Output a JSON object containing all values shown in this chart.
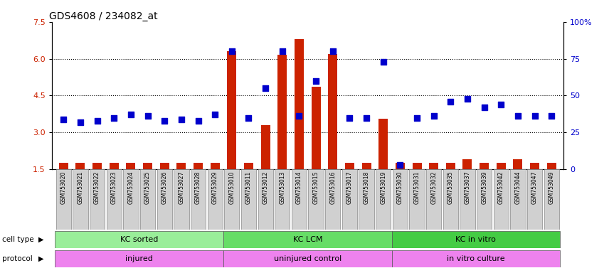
{
  "title": "GDS4608 / 234082_at",
  "samples": [
    "GSM753020",
    "GSM753021",
    "GSM753022",
    "GSM753023",
    "GSM753024",
    "GSM753025",
    "GSM753026",
    "GSM753027",
    "GSM753028",
    "GSM753029",
    "GSM753010",
    "GSM753011",
    "GSM753012",
    "GSM753013",
    "GSM753014",
    "GSM753015",
    "GSM753016",
    "GSM753017",
    "GSM753018",
    "GSM753019",
    "GSM753030",
    "GSM753031",
    "GSM753032",
    "GSM753035",
    "GSM753037",
    "GSM753039",
    "GSM753042",
    "GSM753044",
    "GSM753047",
    "GSM753049"
  ],
  "transformed_count": [
    1.75,
    1.75,
    1.75,
    1.75,
    1.75,
    1.75,
    1.75,
    1.75,
    1.75,
    1.75,
    6.3,
    1.75,
    3.3,
    6.15,
    6.8,
    4.85,
    6.2,
    1.75,
    1.75,
    3.55,
    1.75,
    1.75,
    1.75,
    1.75,
    1.9,
    1.75,
    1.75,
    1.9,
    1.75,
    1.75
  ],
  "percentile_rank": [
    34,
    32,
    33,
    35,
    37,
    36,
    33,
    34,
    33,
    37,
    80,
    35,
    55,
    80,
    36,
    60,
    80,
    35,
    35,
    73,
    3,
    35,
    36,
    46,
    48,
    42,
    44,
    36,
    36,
    36
  ],
  "groups": [
    {
      "label": "KC sorted",
      "start": 0,
      "end": 9,
      "color": "#99ee99"
    },
    {
      "label": "KC LCM",
      "start": 10,
      "end": 19,
      "color": "#66dd66"
    },
    {
      "label": "KC in vitro",
      "start": 20,
      "end": 29,
      "color": "#44cc44"
    }
  ],
  "protocols": [
    {
      "label": "injured",
      "start": 0,
      "end": 9,
      "color": "#ee82ee"
    },
    {
      "label": "uninjured control",
      "start": 10,
      "end": 19,
      "color": "#ee82ee"
    },
    {
      "label": "in vitro culture",
      "start": 20,
      "end": 29,
      "color": "#ee82ee"
    }
  ],
  "ylim_left": [
    1.5,
    7.5
  ],
  "ylim_right": [
    0,
    100
  ],
  "yticks_left": [
    1.5,
    3.0,
    4.5,
    6.0,
    7.5
  ],
  "yticks_right": [
    0,
    25,
    50,
    75,
    100
  ],
  "bar_color": "#cc2200",
  "dot_color": "#0000cc",
  "bar_width": 0.55,
  "dot_size": 30,
  "title_fontsize": 10
}
